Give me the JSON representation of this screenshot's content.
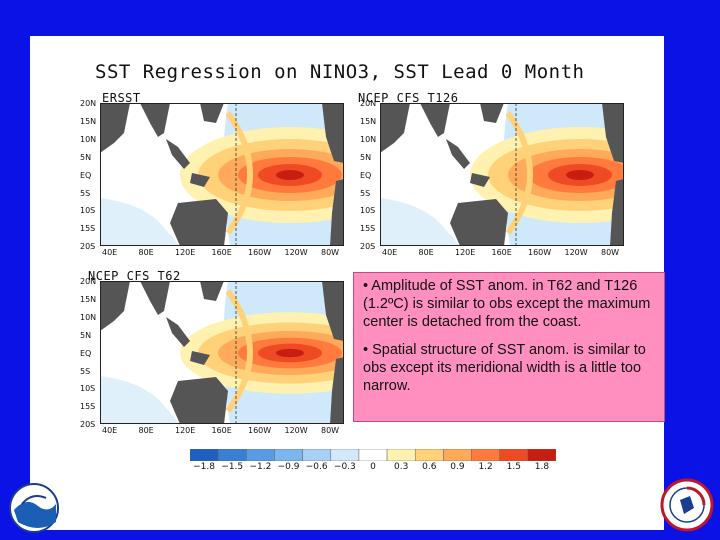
{
  "slide": {
    "title": "SST Regression on NINO3, SST Lead 0 Month",
    "panels": [
      {
        "label": "ERSST"
      },
      {
        "label": "NCEP CFS T126"
      },
      {
        "label": "NCEP CFS T62"
      },
      {
        "label": ""
      }
    ],
    "lat_labels": [
      "20N",
      "15N",
      "10N",
      "5N",
      "EQ",
      "5S",
      "10S",
      "15S",
      "20S"
    ],
    "lon_labels": [
      "40E",
      "80E",
      "120E",
      "160E",
      "160W",
      "120W",
      "80W"
    ],
    "notes": [
      "• Amplitude of SST anom. in T62 and T126 (1.2ºC) is similar to obs except the maximum center is detached from the coast.",
      "• Spatial structure of SST anom. is similar to obs except its meridional width is a little too narrow."
    ],
    "colorbar": {
      "labels": [
        "−1.8",
        "−1.5",
        "−1.2",
        "−0.9",
        "−0.6",
        "−0.3",
        "0",
        "0.3",
        "0.6",
        "0.9",
        "1.2",
        "1.5",
        "1.8"
      ],
      "colors": [
        "#1f5fbf",
        "#3a7fd6",
        "#5a9be6",
        "#7db5f0",
        "#a8d0f7",
        "#d3e9fb",
        "#ffffff",
        "#fff2b0",
        "#ffd27a",
        "#ffaa5a",
        "#ff7a3c",
        "#f04a24",
        "#c81e12"
      ]
    },
    "colors": {
      "background": "#0a12e6",
      "land": "#555555",
      "notes_box": "#ff8fbe"
    }
  }
}
